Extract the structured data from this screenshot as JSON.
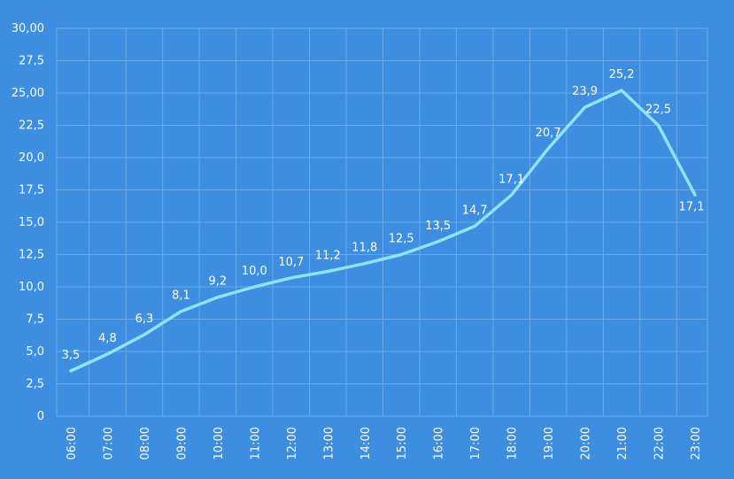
{
  "chart_data": {
    "type": "line",
    "title": "",
    "xlabel": "",
    "ylabel": "",
    "x": [
      "06:00",
      "07:00",
      "08:00",
      "09:00",
      "10:00",
      "11:00",
      "12:00",
      "13:00",
      "14:00",
      "15:00",
      "16:00",
      "17:00",
      "18:00",
      "19:00",
      "20:00",
      "21:00",
      "22:00",
      "23:00"
    ],
    "series": [
      {
        "values": [
          3.5,
          4.8,
          6.3,
          8.1,
          9.2,
          10.0,
          10.7,
          11.2,
          11.8,
          12.5,
          13.5,
          14.7,
          17.1,
          20.7,
          23.9,
          25.2,
          22.5,
          17.1
        ],
        "labels": [
          "3,5",
          "4,8",
          "6,3",
          "8,1",
          "9,2",
          "10,0",
          "10,7",
          "11,2",
          "11,8",
          "12,5",
          "13,5",
          "14,7",
          "17,1",
          "20,7",
          "23,9",
          "25,2",
          "22,5",
          "17,1"
        ]
      }
    ],
    "ylim": [
      0,
      30
    ],
    "y_ticks": [
      0,
      2.5,
      5,
      7.5,
      10,
      12.5,
      15,
      17.5,
      20,
      22.5,
      25,
      27.5,
      30
    ],
    "y_tick_labels": [
      "0",
      "2,5",
      "5,0",
      "7,5",
      "10,0",
      "12,5",
      "15,0",
      "17,5",
      "20,0",
      "22,5",
      "25,00",
      "27,5",
      "30,00"
    ],
    "grid": true,
    "colors": {
      "background": "#3d8ee0",
      "line": "#8fe3fb",
      "grid": "#6aa9ea",
      "text": "#ffffff"
    }
  }
}
